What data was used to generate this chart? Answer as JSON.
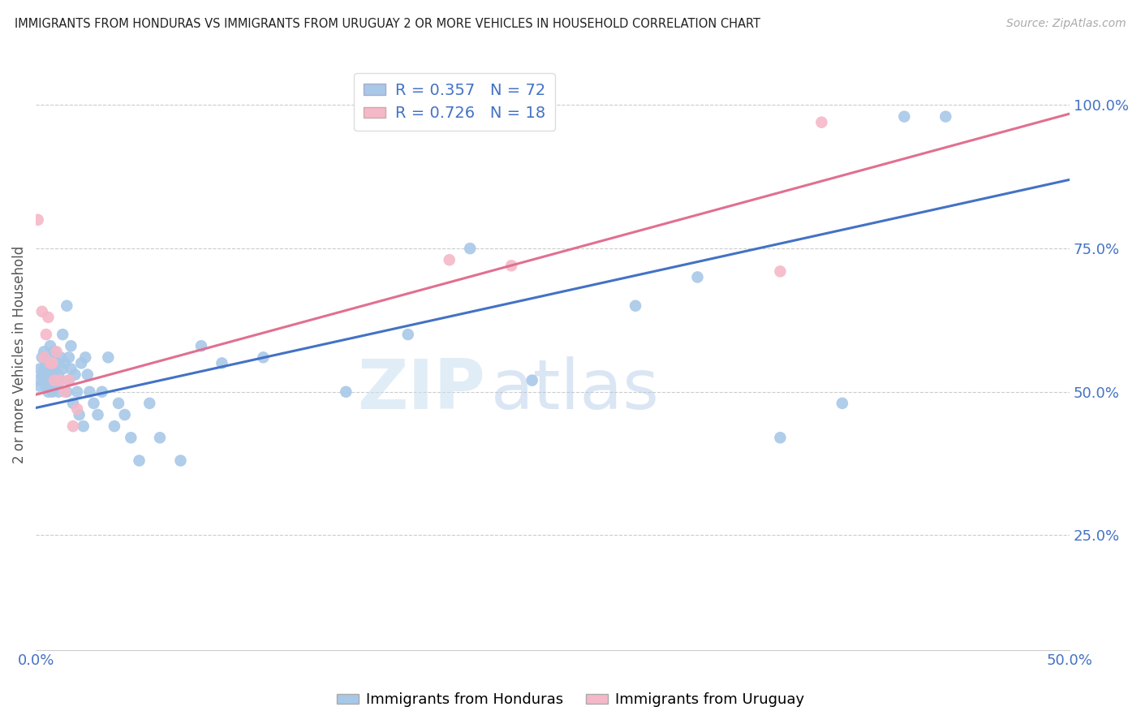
{
  "title": "IMMIGRANTS FROM HONDURAS VS IMMIGRANTS FROM URUGUAY 2 OR MORE VEHICLES IN HOUSEHOLD CORRELATION CHART",
  "source": "Source: ZipAtlas.com",
  "ylabel": "2 or more Vehicles in Household",
  "xlim": [
    0.0,
    0.5
  ],
  "ylim": [
    0.05,
    1.08
  ],
  "honduras_color": "#a8c8e8",
  "uruguay_color": "#f4b8c8",
  "honduras_line_color": "#4472c4",
  "uruguay_line_color": "#e07090",
  "R_honduras": 0.357,
  "N_honduras": 72,
  "R_uruguay": 0.726,
  "N_uruguay": 18,
  "watermark": "ZIPatlas",
  "legend_label_honduras": "Immigrants from Honduras",
  "legend_label_uruguay": "Immigrants from Uruguay",
  "honduras_x": [
    0.001,
    0.002,
    0.002,
    0.003,
    0.003,
    0.004,
    0.004,
    0.004,
    0.005,
    0.005,
    0.005,
    0.006,
    0.006,
    0.006,
    0.007,
    0.007,
    0.007,
    0.008,
    0.008,
    0.008,
    0.009,
    0.009,
    0.009,
    0.01,
    0.01,
    0.011,
    0.011,
    0.012,
    0.012,
    0.013,
    0.013,
    0.014,
    0.015,
    0.015,
    0.016,
    0.016,
    0.017,
    0.017,
    0.018,
    0.019,
    0.02,
    0.021,
    0.022,
    0.023,
    0.024,
    0.025,
    0.026,
    0.028,
    0.03,
    0.032,
    0.035,
    0.038,
    0.04,
    0.043,
    0.046,
    0.05,
    0.055,
    0.06,
    0.07,
    0.08,
    0.09,
    0.11,
    0.15,
    0.18,
    0.21,
    0.24,
    0.29,
    0.32,
    0.36,
    0.39,
    0.42,
    0.44
  ],
  "honduras_y": [
    0.52,
    0.51,
    0.54,
    0.53,
    0.56,
    0.52,
    0.54,
    0.57,
    0.51,
    0.53,
    0.55,
    0.5,
    0.52,
    0.54,
    0.51,
    0.53,
    0.58,
    0.5,
    0.53,
    0.56,
    0.52,
    0.54,
    0.57,
    0.51,
    0.55,
    0.5,
    0.53,
    0.52,
    0.56,
    0.54,
    0.6,
    0.55,
    0.65,
    0.5,
    0.52,
    0.56,
    0.54,
    0.58,
    0.48,
    0.53,
    0.5,
    0.46,
    0.55,
    0.44,
    0.56,
    0.53,
    0.5,
    0.48,
    0.46,
    0.5,
    0.56,
    0.44,
    0.48,
    0.46,
    0.42,
    0.38,
    0.48,
    0.42,
    0.38,
    0.58,
    0.55,
    0.56,
    0.5,
    0.6,
    0.75,
    0.52,
    0.65,
    0.7,
    0.42,
    0.48,
    0.98,
    0.98
  ],
  "uruguay_x": [
    0.001,
    0.003,
    0.004,
    0.005,
    0.006,
    0.007,
    0.008,
    0.009,
    0.01,
    0.012,
    0.014,
    0.016,
    0.018,
    0.02,
    0.2,
    0.23,
    0.36,
    0.38
  ],
  "uruguay_y": [
    0.8,
    0.64,
    0.56,
    0.6,
    0.63,
    0.55,
    0.55,
    0.52,
    0.57,
    0.52,
    0.5,
    0.52,
    0.44,
    0.47,
    0.73,
    0.72,
    0.71,
    0.97
  ],
  "h_line_x0": 0.0,
  "h_line_y0": 0.472,
  "h_line_x1": 0.5,
  "h_line_y1": 0.87,
  "u_line_x0": 0.0,
  "u_line_y0": 0.495,
  "u_line_x1": 0.5,
  "u_line_y1": 0.985
}
